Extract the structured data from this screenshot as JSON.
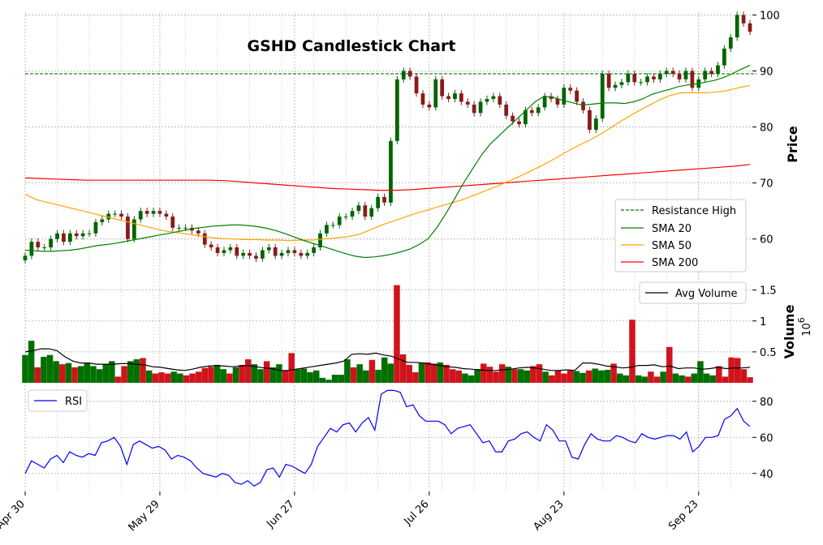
{
  "chart_data": {
    "type": "candlestick",
    "title": "GSHD Candlestick Chart",
    "x_tick_labels": [
      "Apr 30",
      "May 29",
      "Jun 27",
      "Jul 26",
      "Aug 23",
      "Sep 23"
    ],
    "x_tick_index": [
      0,
      21,
      42,
      63,
      84,
      105
    ],
    "price_panel": {
      "ylabel": "Price",
      "yticks": [
        60,
        70,
        80,
        90,
        100
      ],
      "ylim": [
        53,
        100.5
      ],
      "resistance_high": 89.5,
      "colors": {
        "up": "#006400",
        "down": "#8b1a1a"
      },
      "close": [
        57,
        59.5,
        58.5,
        58.5,
        60,
        61,
        59.5,
        61,
        60.5,
        61,
        61,
        63,
        63.5,
        64.5,
        64.5,
        64,
        60,
        63.5,
        65,
        64.5,
        65,
        64.5,
        64,
        62,
        62,
        62,
        61.5,
        61,
        59,
        58.5,
        57.5,
        58,
        58.5,
        57,
        57.5,
        57,
        56.5,
        58,
        58.5,
        57,
        57.5,
        58,
        57.5,
        57,
        57.5,
        58.5,
        61,
        62.5,
        62.5,
        64,
        64,
        65,
        66,
        64,
        65.5,
        67.5,
        66.5,
        77.5,
        88.5,
        90,
        89,
        86,
        84,
        83.5,
        88.5,
        85.5,
        85,
        86,
        84.5,
        84,
        82.5,
        84.5,
        85,
        85.5,
        84,
        82,
        81,
        80.5,
        83,
        82.5,
        83.5,
        85.5,
        85,
        84,
        87,
        86.5,
        84.5,
        83,
        79.5,
        81.5,
        89.5,
        87,
        87.5,
        88,
        89.5,
        88,
        88,
        89,
        88.5,
        89.5,
        90,
        89.5,
        88.5,
        90,
        87,
        88.5,
        90,
        89.5,
        91,
        94,
        96,
        100,
        98.5,
        97
      ],
      "sma20": [
        58,
        57.9,
        57.8,
        57.8,
        57.9,
        58,
        58.2,
        58.5,
        58.8,
        59,
        59.2,
        59.5,
        59.8,
        60.1,
        60.4,
        60.7,
        61,
        61.3,
        61.6,
        61.9,
        62.1,
        62.3,
        62.4,
        62.5,
        62.5,
        62.4,
        62.2,
        61.9,
        61.5,
        61,
        60.4,
        59.8,
        59.3,
        58.8,
        58.3,
        57.8,
        57.3,
        56.9,
        56.7,
        56.8,
        57,
        57.3,
        57.7,
        58.2,
        59,
        60,
        62,
        64.5,
        67.2,
        70,
        72.5,
        75,
        77,
        78.5,
        80,
        81.5,
        83,
        84.5,
        85.5,
        85.3,
        84.8,
        84.4,
        84,
        84,
        84.2,
        84.3,
        84.3,
        84.2,
        84.5,
        85,
        85.8,
        86.3,
        86.7,
        87.2,
        87.5,
        87.7,
        88,
        88.3,
        88.8,
        89.5,
        90.3,
        91
      ],
      "sma50": [
        68,
        67,
        66.5,
        66,
        65.5,
        65,
        64.5,
        64,
        63.5,
        63,
        62.5,
        62,
        61.5,
        61.2,
        60.9,
        60.6,
        60.3,
        60.1,
        60,
        59.9,
        59.9,
        59.8,
        59.8,
        59.7,
        59.8,
        59.8,
        60,
        60.2,
        60.4,
        60.8,
        61.6,
        62.5,
        63.2,
        63.9,
        64.6,
        65.2,
        65.8,
        66.4,
        67,
        67.8,
        68.6,
        69.4,
        70.3,
        71.2,
        72.2,
        73.2,
        74.3,
        75.5,
        76.6,
        77.6,
        78.7,
        80,
        81.3,
        82.5,
        83.6,
        84.7,
        85.6,
        86.1,
        86.1,
        86.1,
        86.2,
        86.5,
        87,
        87.4
      ],
      "sma200": [
        70.9,
        70.8,
        70.7,
        70.6,
        70.5,
        70.5,
        70.5,
        70.5,
        70.5,
        70.5,
        70.5,
        70.5,
        70.5,
        70.4,
        70.2,
        70,
        69.8,
        69.6,
        69.4,
        69.2,
        69,
        68.9,
        68.8,
        68.7,
        68.7,
        68.8,
        69,
        69.2,
        69.4,
        69.6,
        69.8,
        70,
        70.2,
        70.4,
        70.6,
        70.8,
        71,
        71.2,
        71.4,
        71.6,
        71.8,
        72,
        72.2,
        72.4,
        72.6,
        72.8,
        73,
        73.3
      ]
    },
    "volume_panel": {
      "ylabel": "Volume",
      "scale_label": "10^6",
      "yticks": [
        0.5,
        1.0,
        1.5
      ],
      "ylim": [
        0,
        1.6
      ],
      "colors": {
        "up": "#007000",
        "down": "#d0141c"
      },
      "values": [
        0.45,
        0.68,
        0.25,
        0.42,
        0.45,
        0.35,
        0.3,
        0.32,
        0.25,
        0.27,
        0.32,
        0.27,
        0.22,
        0.3,
        0.35,
        0.1,
        0.27,
        0.35,
        0.38,
        0.4,
        0.2,
        0.15,
        0.17,
        0.15,
        0.18,
        0.15,
        0.12,
        0.15,
        0.18,
        0.24,
        0.26,
        0.29,
        0.22,
        0.15,
        0.25,
        0.29,
        0.38,
        0.3,
        0.22,
        0.35,
        0.25,
        0.3,
        0.2,
        0.48,
        0.22,
        0.23,
        0.17,
        0.2,
        0.08,
        0.05,
        0.13,
        0.13,
        0.38,
        0.25,
        0.3,
        0.2,
        0.37,
        0.21,
        0.41,
        0.31,
        1.58,
        0.46,
        0.29,
        0.17,
        0.32,
        0.33,
        0.31,
        0.33,
        0.29,
        0.22,
        0.2,
        0.15,
        0.12,
        0.22,
        0.31,
        0.26,
        0.18,
        0.3,
        0.26,
        0.22,
        0.22,
        0.2,
        0.27,
        0.3,
        0.18,
        0.12,
        0.2,
        0.15,
        0.2,
        0.19,
        0.16,
        0.2,
        0.23,
        0.2,
        0.21,
        0.31,
        0.15,
        0.12,
        1.02,
        0.12,
        0.1,
        0.18,
        0.1,
        0.18,
        0.58,
        0.15,
        0.12,
        0.1,
        0.15,
        0.35,
        0.15,
        0.12,
        0.27,
        0.1,
        0.41,
        0.4,
        0.22,
        0.09
      ],
      "avg_volume": [
        0.5,
        0.52,
        0.55,
        0.55,
        0.52,
        0.42,
        0.35,
        0.32,
        0.32,
        0.3,
        0.3,
        0.3,
        0.31,
        0.31,
        0.3,
        0.29,
        0.26,
        0.25,
        0.23,
        0.21,
        0.2,
        0.22,
        0.25,
        0.27,
        0.28,
        0.27,
        0.26,
        0.27,
        0.28,
        0.26,
        0.24,
        0.23,
        0.2,
        0.2,
        0.22,
        0.24,
        0.26,
        0.28,
        0.3,
        0.32,
        0.35,
        0.46,
        0.47,
        0.46,
        0.48,
        0.45,
        0.43,
        0.38,
        0.33,
        0.33,
        0.32,
        0.3,
        0.28,
        0.26,
        0.25,
        0.23,
        0.22,
        0.21,
        0.2,
        0.2,
        0.21,
        0.22,
        0.24,
        0.25,
        0.24,
        0.22,
        0.2,
        0.2,
        0.21,
        0.2,
        0.32,
        0.32,
        0.3,
        0.27,
        0.26,
        0.24,
        0.25,
        0.28,
        0.28,
        0.29,
        0.26,
        0.27,
        0.23,
        0.24,
        0.24,
        0.22,
        0.23,
        0.25,
        0.23,
        0.24,
        0.24,
        0.25
      ]
    },
    "rsi_panel": {
      "yticks": [
        40,
        60,
        80
      ],
      "ylim": [
        30,
        88
      ],
      "color": "#0000ff",
      "values": [
        40,
        47,
        45,
        43,
        48,
        50,
        46,
        52,
        50,
        49,
        51,
        50,
        57,
        58,
        60,
        55,
        45,
        56,
        58,
        56,
        54,
        55,
        53,
        48,
        50,
        49,
        47,
        43,
        40,
        39,
        38,
        40,
        39,
        35,
        34,
        36,
        33,
        35,
        42,
        43,
        38,
        45,
        44,
        42,
        40,
        45,
        55,
        60,
        65,
        63,
        67,
        68,
        63,
        68,
        71,
        64,
        84,
        86,
        86,
        85,
        77,
        78,
        72,
        69,
        69,
        69,
        67,
        62,
        65,
        66,
        67,
        62,
        57,
        58,
        52,
        52,
        58,
        59,
        62,
        63,
        60,
        58,
        67,
        64,
        58,
        58,
        49,
        48,
        56,
        62,
        59,
        58,
        58,
        61,
        60,
        58,
        57,
        62,
        60,
        59,
        60,
        61,
        61,
        59,
        63,
        52,
        55,
        60,
        60,
        61,
        70,
        72,
        76,
        69,
        66
      ]
    },
    "legend": {
      "price": [
        "Resistance High",
        "SMA 20",
        "SMA 50",
        "SMA 200"
      ],
      "volume": [
        "Avg Volume"
      ],
      "rsi": [
        "RSI"
      ]
    },
    "series_colors": {
      "resistance": "#008000",
      "sma20": "#008000",
      "sma50": "#ffa500",
      "sma200": "#ff0000",
      "avg_volume": "#000000",
      "rsi": "#0000ff"
    }
  }
}
